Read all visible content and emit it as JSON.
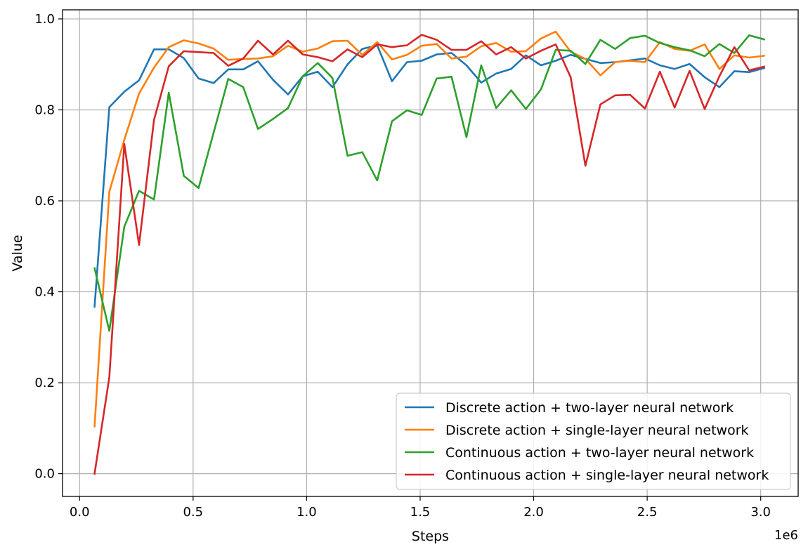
{
  "chart_data": {
    "type": "line",
    "title": "",
    "xlabel": "Steps",
    "ylabel": "Value",
    "x_offset_label": "1e6",
    "xlim": [
      -0.075,
      3.165
    ],
    "ylim": [
      -0.05,
      1.02
    ],
    "x_ticks": [
      0.0,
      0.5,
      1.0,
      1.5,
      2.0,
      2.5,
      3.0
    ],
    "x_tick_labels": [
      "0.0",
      "0.5",
      "1.0",
      "1.5",
      "2.0",
      "2.5",
      "3.0"
    ],
    "y_ticks": [
      0.0,
      0.2,
      0.4,
      0.6,
      0.8,
      1.0
    ],
    "y_tick_labels": [
      "0.0",
      "0.2",
      "0.4",
      "0.6",
      "0.8",
      "1.0"
    ],
    "grid": true,
    "legend_position": "lower-right",
    "x": [
      0.066,
      0.131,
      0.197,
      0.262,
      0.328,
      0.393,
      0.459,
      0.524,
      0.59,
      0.655,
      0.721,
      0.786,
      0.852,
      0.918,
      0.983,
      1.049,
      1.114,
      1.18,
      1.245,
      1.311,
      1.376,
      1.442,
      1.507,
      1.573,
      1.638,
      1.704,
      1.769,
      1.835,
      1.901,
      1.966,
      2.032,
      2.097,
      2.163,
      2.228,
      2.294,
      2.359,
      2.425,
      2.49,
      2.556,
      2.621,
      2.687,
      2.753,
      2.818,
      2.884,
      2.949,
      3.015
    ],
    "series": [
      {
        "name": "Discrete action + two-layer neural network",
        "color": "#1f77b4",
        "values": [
          0.367,
          0.806,
          0.84,
          0.865,
          0.933,
          0.933,
          0.914,
          0.869,
          0.859,
          0.889,
          0.889,
          0.907,
          0.866,
          0.834,
          0.874,
          0.884,
          0.85,
          0.9,
          0.934,
          0.942,
          0.863,
          0.905,
          0.908,
          0.922,
          0.925,
          0.898,
          0.86,
          0.88,
          0.89,
          0.92,
          0.898,
          0.908,
          0.921,
          0.912,
          0.903,
          0.905,
          0.909,
          0.913,
          0.898,
          0.89,
          0.901,
          0.872,
          0.85,
          0.885,
          0.883,
          0.892
        ]
      },
      {
        "name": "Discrete action + single-layer neural network",
        "color": "#ff7f0e",
        "values": [
          0.104,
          0.62,
          0.734,
          0.836,
          0.893,
          0.938,
          0.953,
          0.946,
          0.935,
          0.91,
          0.912,
          0.913,
          0.918,
          0.941,
          0.928,
          0.935,
          0.951,
          0.952,
          0.921,
          0.949,
          0.911,
          0.921,
          0.941,
          0.945,
          0.913,
          0.917,
          0.94,
          0.947,
          0.928,
          0.929,
          0.957,
          0.972,
          0.928,
          0.912,
          0.876,
          0.905,
          0.908,
          0.905,
          0.949,
          0.934,
          0.93,
          0.944,
          0.89,
          0.92,
          0.915,
          0.919
        ]
      },
      {
        "name": "Continuous action + two-layer neural network",
        "color": "#2ca02c",
        "values": [
          0.452,
          0.314,
          0.543,
          0.622,
          0.603,
          0.838,
          0.655,
          0.628,
          0.749,
          0.868,
          0.85,
          0.758,
          0.78,
          0.804,
          0.874,
          0.903,
          0.87,
          0.699,
          0.707,
          0.645,
          0.775,
          0.799,
          0.789,
          0.869,
          0.873,
          0.74,
          0.898,
          0.804,
          0.843,
          0.802,
          0.845,
          0.932,
          0.93,
          0.901,
          0.954,
          0.934,
          0.958,
          0.963,
          0.947,
          0.938,
          0.931,
          0.918,
          0.945,
          0.925,
          0.964,
          0.955
        ]
      },
      {
        "name": "Continuous action + single-layer neural network",
        "color": "#d62728",
        "values": [
          0.0,
          0.212,
          0.725,
          0.503,
          0.778,
          0.896,
          0.929,
          0.927,
          0.925,
          0.897,
          0.913,
          0.952,
          0.922,
          0.952,
          0.922,
          0.916,
          0.907,
          0.933,
          0.916,
          0.944,
          0.938,
          0.942,
          0.965,
          0.954,
          0.932,
          0.932,
          0.951,
          0.922,
          0.938,
          0.913,
          0.93,
          0.944,
          0.872,
          0.677,
          0.812,
          0.832,
          0.833,
          0.803,
          0.884,
          0.805,
          0.886,
          0.802,
          0.874,
          0.938,
          0.887,
          0.895
        ]
      }
    ]
  }
}
